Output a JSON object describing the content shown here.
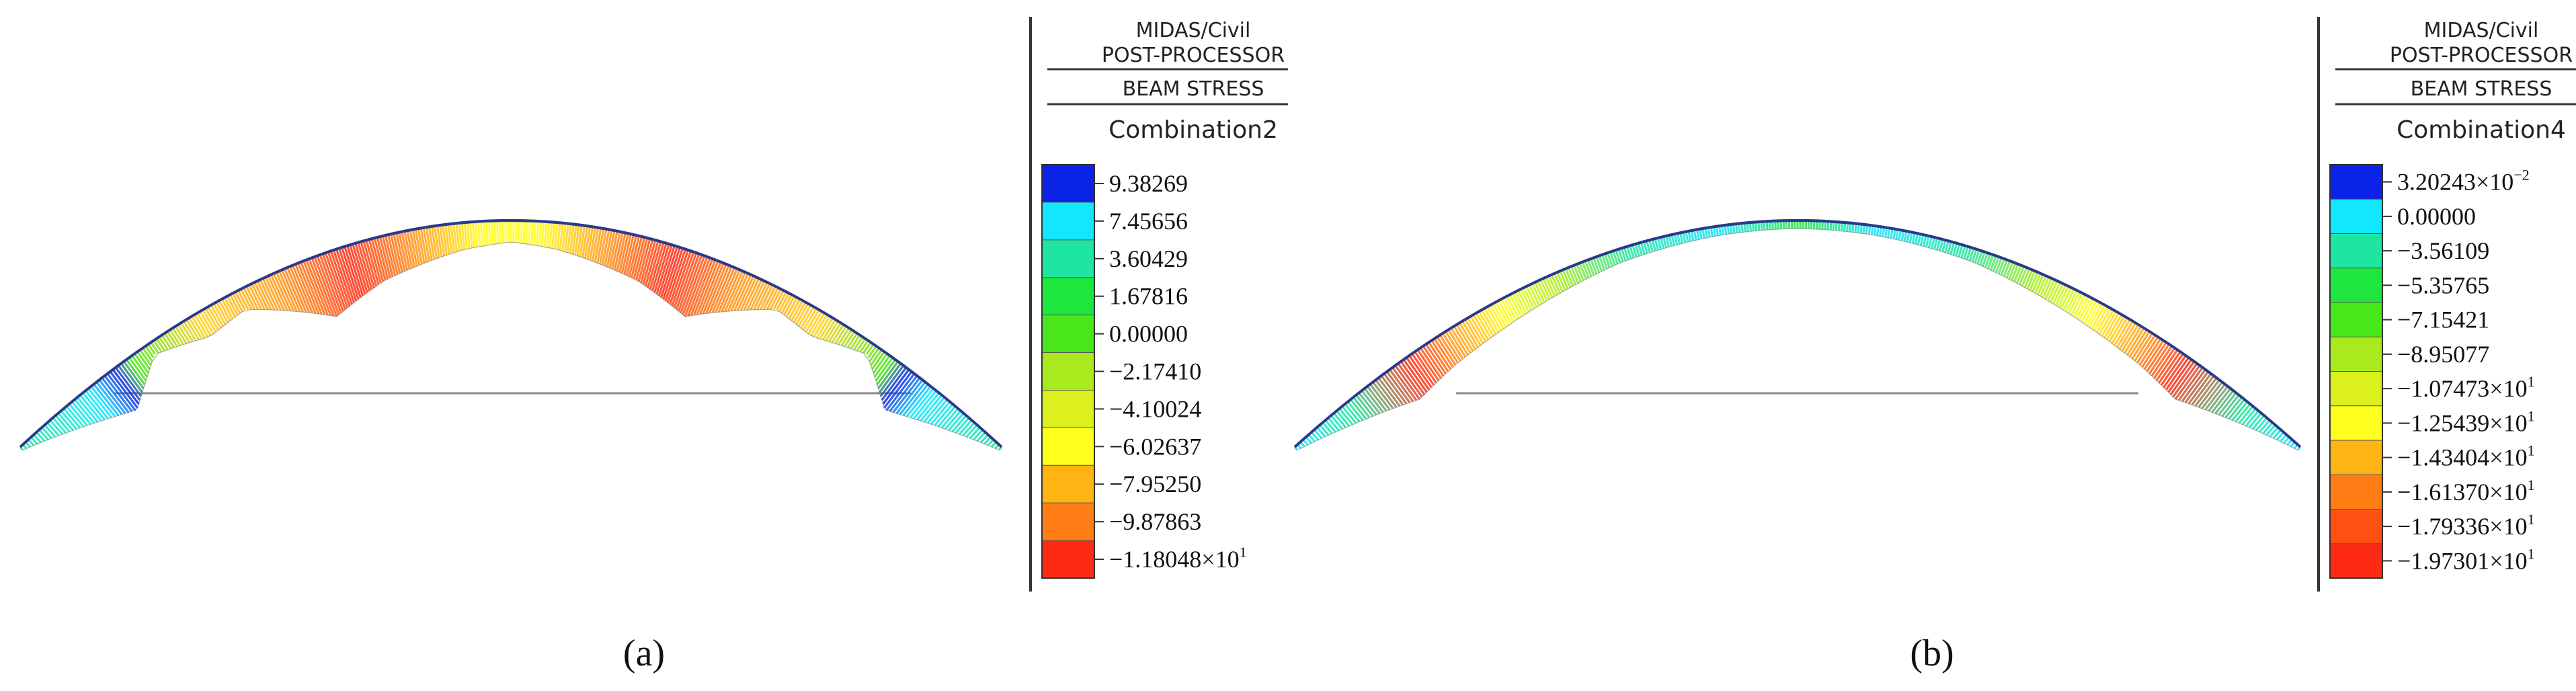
{
  "panels": [
    {
      "id": "a",
      "sub_label": "(a)",
      "legend": {
        "header_line1": "MIDAS/Civil",
        "header_line2": "POST-PROCESSOR",
        "header_line3": "BEAM STRESS",
        "combination": "Combination2",
        "entries": [
          {
            "mant": "9.38269",
            "exp": "",
            "color": "#0a23e6"
          },
          {
            "mant": "7.45656",
            "exp": "",
            "color": "#13e6ff"
          },
          {
            "mant": "3.60429",
            "exp": "",
            "color": "#1ee6a0"
          },
          {
            "mant": "1.67816",
            "exp": "",
            "color": "#1ee63c"
          },
          {
            "mant": "0.00000",
            "exp": "",
            "color": "#4ae61c"
          },
          {
            "mant": "−2.17410",
            "exp": "",
            "color": "#a8ea1e"
          },
          {
            "mant": "−4.10024",
            "exp": "",
            "color": "#dcf01e"
          },
          {
            "mant": "−6.02637",
            "exp": "",
            "color": "#ffff1e"
          },
          {
            "mant": "−7.95250",
            "exp": "",
            "color": "#ffb414"
          },
          {
            "mant": "−9.87863",
            "exp": "",
            "color": "#ff7d14"
          },
          {
            "mant": "−1.18048×10",
            "exp": "1",
            "color": "#ff2a14"
          }
        ]
      }
    },
    {
      "id": "b",
      "sub_label": "(b)",
      "legend": {
        "header_line1": "MIDAS/Civil",
        "header_line2": "POST-PROCESSOR",
        "header_line3": "BEAM STRESS",
        "combination": "Combination4",
        "entries": [
          {
            "mant": "3.20243×10",
            "exp": "−2",
            "color": "#0a23e6"
          },
          {
            "mant": "0.00000",
            "exp": "",
            "color": "#13e6ff"
          },
          {
            "mant": "−3.56109",
            "exp": "",
            "color": "#1ee6a0"
          },
          {
            "mant": "−5.35765",
            "exp": "",
            "color": "#1ee63c"
          },
          {
            "mant": "−7.15421",
            "exp": "",
            "color": "#4ae61c"
          },
          {
            "mant": "−8.95077",
            "exp": "",
            "color": "#a8ea1e"
          },
          {
            "mant": "−1.07473×10",
            "exp": "1",
            "color": "#dcf01e"
          },
          {
            "mant": "−1.25439×10",
            "exp": "1",
            "color": "#ffff1e"
          },
          {
            "mant": "−1.43404×10",
            "exp": "1",
            "color": "#ffb414"
          },
          {
            "mant": "−1.61370×10",
            "exp": "1",
            "color": "#ff7d14"
          },
          {
            "mant": "−1.79336×10",
            "exp": "1",
            "color": "#ff5014"
          },
          {
            "mant": "−1.97301×10",
            "exp": "1",
            "color": "#ff2a14"
          }
        ]
      }
    }
  ]
}
